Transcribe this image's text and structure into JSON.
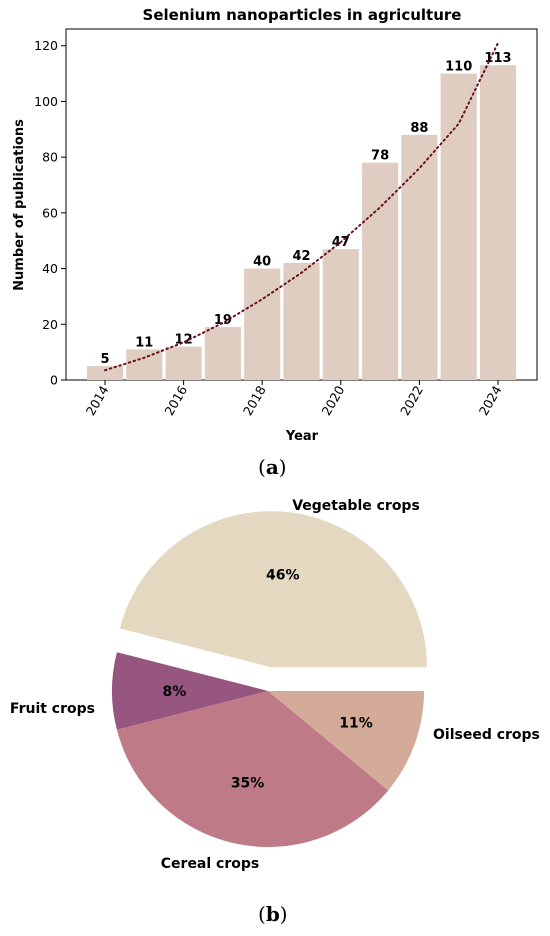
{
  "panel_a_label": {
    "open": "(",
    "letter": "a",
    "close": ")"
  },
  "panel_b_label": {
    "open": "(",
    "letter": "b",
    "close": ")"
  },
  "chart_data": [
    {
      "type": "bar",
      "title": "Selenium nanoparticles in agriculture",
      "xlabel": "Year",
      "ylabel": "Number of publications",
      "categories": [
        2014,
        2015,
        2016,
        2017,
        2018,
        2019,
        2020,
        2021,
        2022,
        2023,
        2024
      ],
      "values": [
        5,
        11,
        12,
        19,
        40,
        42,
        47,
        78,
        88,
        110,
        113
      ],
      "data_labels": [
        "5",
        "11",
        "12",
        "19",
        "40",
        "42",
        "47",
        "78",
        "88",
        "110",
        "113"
      ],
      "x_ticks": [
        "2014",
        "2016",
        "2018",
        "2020",
        "2022",
        "2024"
      ],
      "y_ticks": [
        "0",
        "20",
        "40",
        "60",
        "80",
        "100",
        "120"
      ],
      "ylim": [
        0,
        126
      ],
      "trendline": {
        "style": "dotted",
        "x": [
          2014,
          2015,
          2016,
          2017,
          2018,
          2019,
          2020,
          2021,
          2022,
          2023,
          2024
        ],
        "y": [
          3.5,
          8,
          13.5,
          20.5,
          29,
          38.5,
          49.5,
          62,
          76,
          92,
          121
        ]
      },
      "colors": {
        "bar": "#dfcdc1",
        "trend": "#6b1020"
      },
      "grid": false
    },
    {
      "type": "pie",
      "slices": [
        {
          "label": "Vegetable crops",
          "value": 46,
          "pct_label": "46%",
          "color": "#e4d9c0",
          "explode": true
        },
        {
          "label": "Oilseed crops",
          "value": 8,
          "pct_label": "8%",
          "color": "#97567f",
          "explode": false
        },
        {
          "label": "Cereal crops",
          "value": 35,
          "pct_label": "35%",
          "color": "#be7a86",
          "explode": false
        },
        {
          "label": "Fruit crops",
          "value": 11,
          "pct_label": "11%",
          "color": "#d4aa98",
          "explode": false
        }
      ]
    }
  ]
}
